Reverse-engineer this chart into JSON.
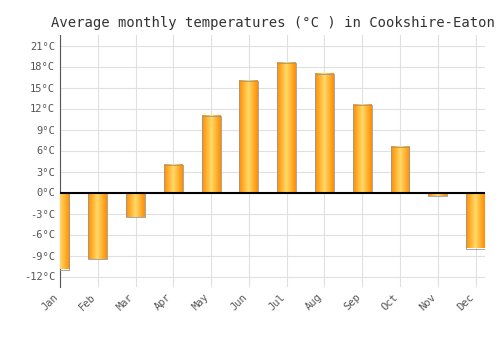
{
  "months": [
    "Jan",
    "Feb",
    "Mar",
    "Apr",
    "May",
    "Jun",
    "Jul",
    "Aug",
    "Sep",
    "Oct",
    "Nov",
    "Dec"
  ],
  "temperatures": [
    -11.0,
    -9.5,
    -3.5,
    4.0,
    11.0,
    16.0,
    18.5,
    17.0,
    12.5,
    6.5,
    -0.5,
    -8.0
  ],
  "bar_color": "#FFA520",
  "bar_edge_color": "#999999",
  "title": "Average monthly temperatures (°C ) in Cookshire-Eaton",
  "title_fontsize": 10,
  "yticks": [
    -12,
    -9,
    -6,
    -3,
    0,
    3,
    6,
    9,
    12,
    15,
    18,
    21
  ],
  "ytick_labels": [
    "-12°C",
    "-9°C",
    "-6°C",
    "-3°C",
    "0°C",
    "3°C",
    "6°C",
    "9°C",
    "12°C",
    "15°C",
    "18°C",
    "21°C"
  ],
  "ylim": [
    -13.5,
    22.5
  ],
  "background_color": "#ffffff",
  "grid_color": "#e0e0e0",
  "zero_line_color": "#000000",
  "bar_width": 0.5
}
